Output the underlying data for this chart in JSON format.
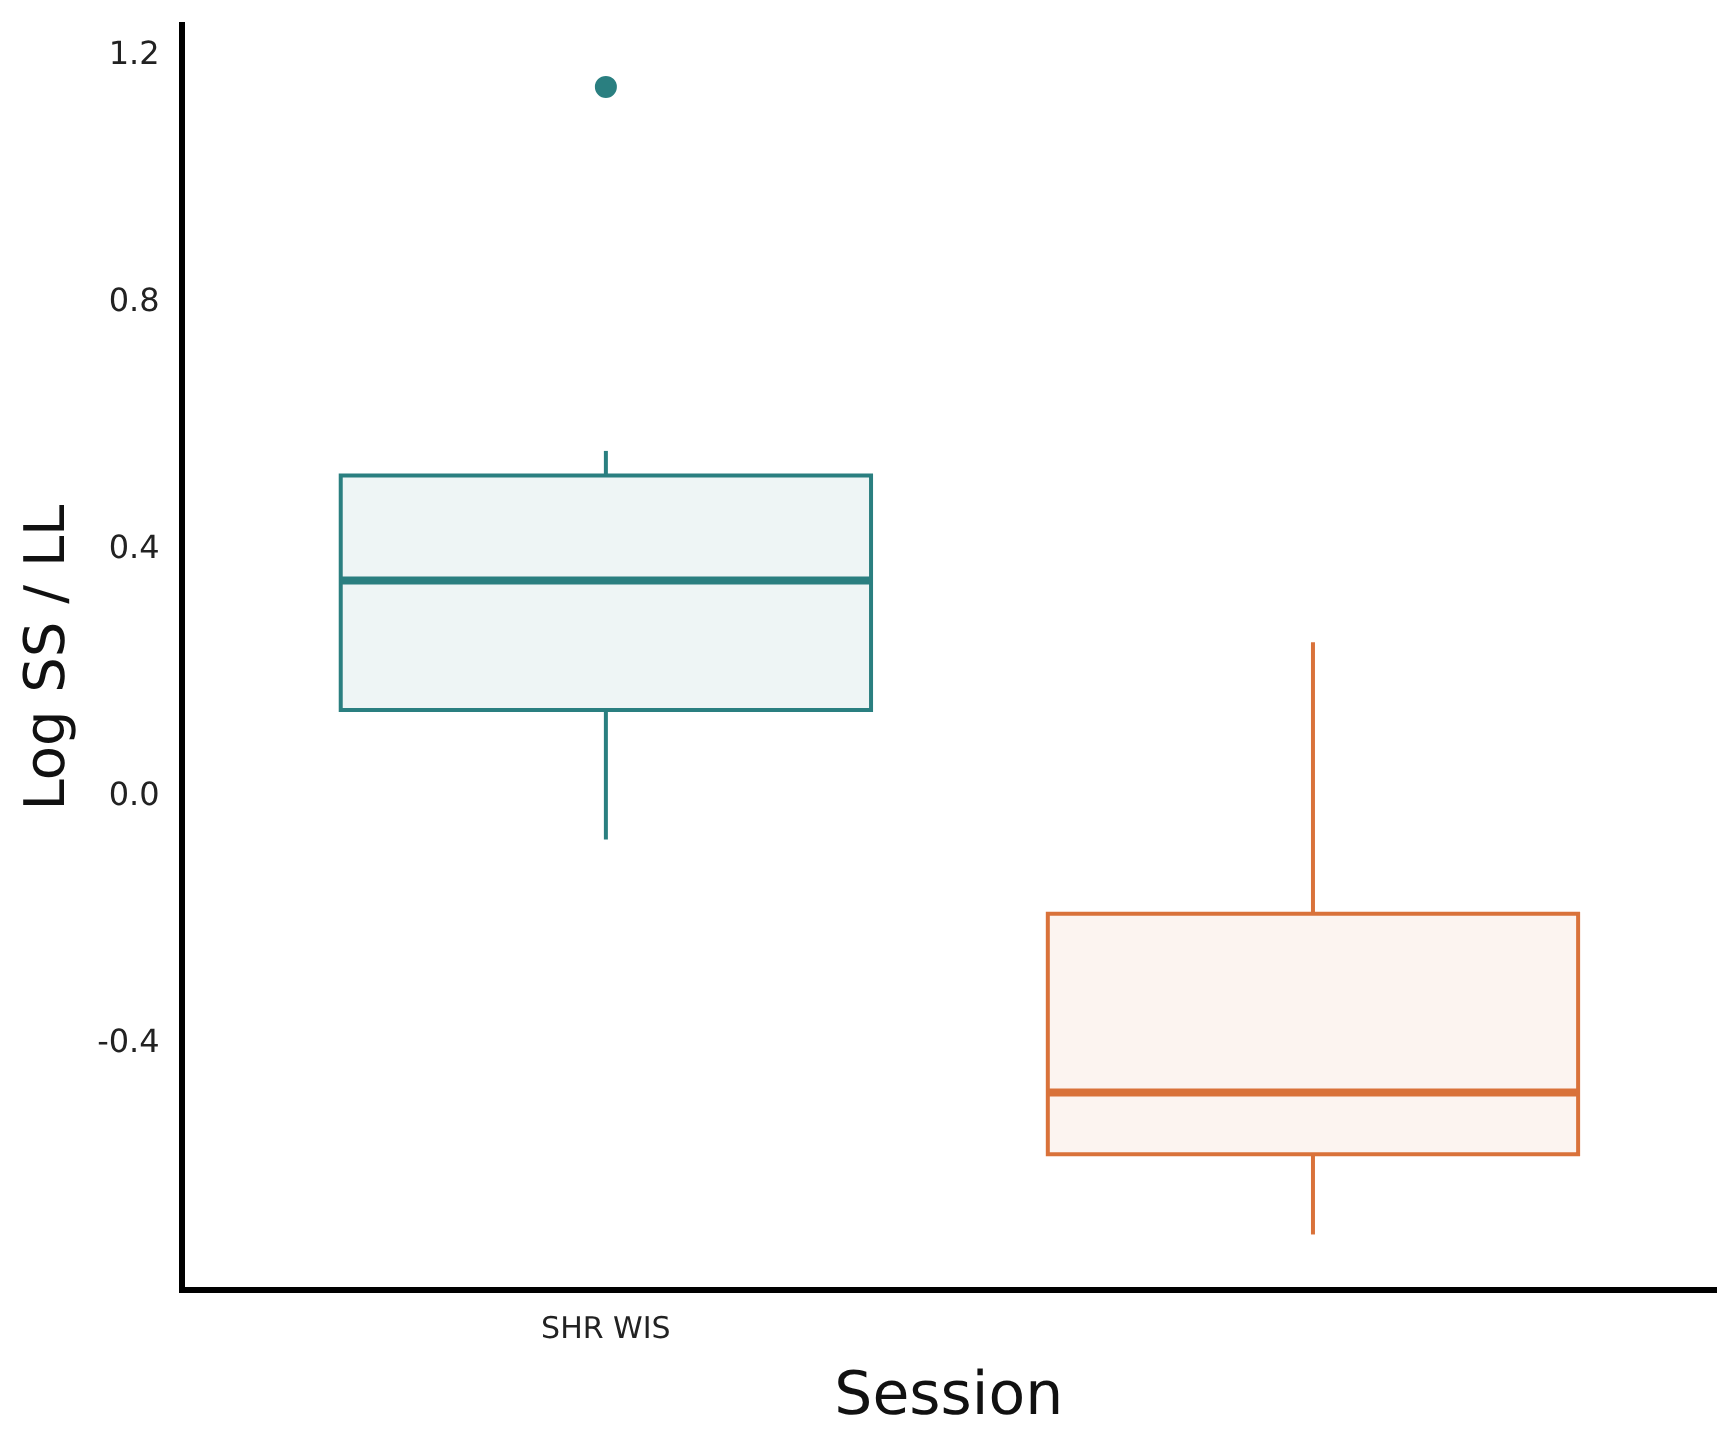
{
  "chart_data": {
    "type": "box",
    "xlabel": "Session",
    "ylabel": "Log SS / LL",
    "categories": [
      "SHR WIS",
      null
    ],
    "colors": [
      "#2a7f80",
      "#d9723a"
    ],
    "boxes": [
      {
        "low": -0.07,
        "q1": 0.14,
        "median": 0.35,
        "q3": 0.52,
        "high": 0.56,
        "outliers": [
          1.15
        ]
      },
      {
        "low": -0.71,
        "q1": -0.58,
        "median": -0.48,
        "q3": -0.19,
        "high": 0.25
      }
    ],
    "ylim": [
      -0.8,
      1.25
    ],
    "yticks": [
      {
        "value": -0.4,
        "label": "-0.4"
      },
      {
        "value": 0,
        "label": "0.0"
      },
      {
        "value": 0.4,
        "label": "0.4"
      },
      {
        "value": 0.8,
        "label": "0.8"
      },
      {
        "value": 1.2,
        "label": "1.2"
      }
    ],
    "grid": false,
    "legend": false
  }
}
